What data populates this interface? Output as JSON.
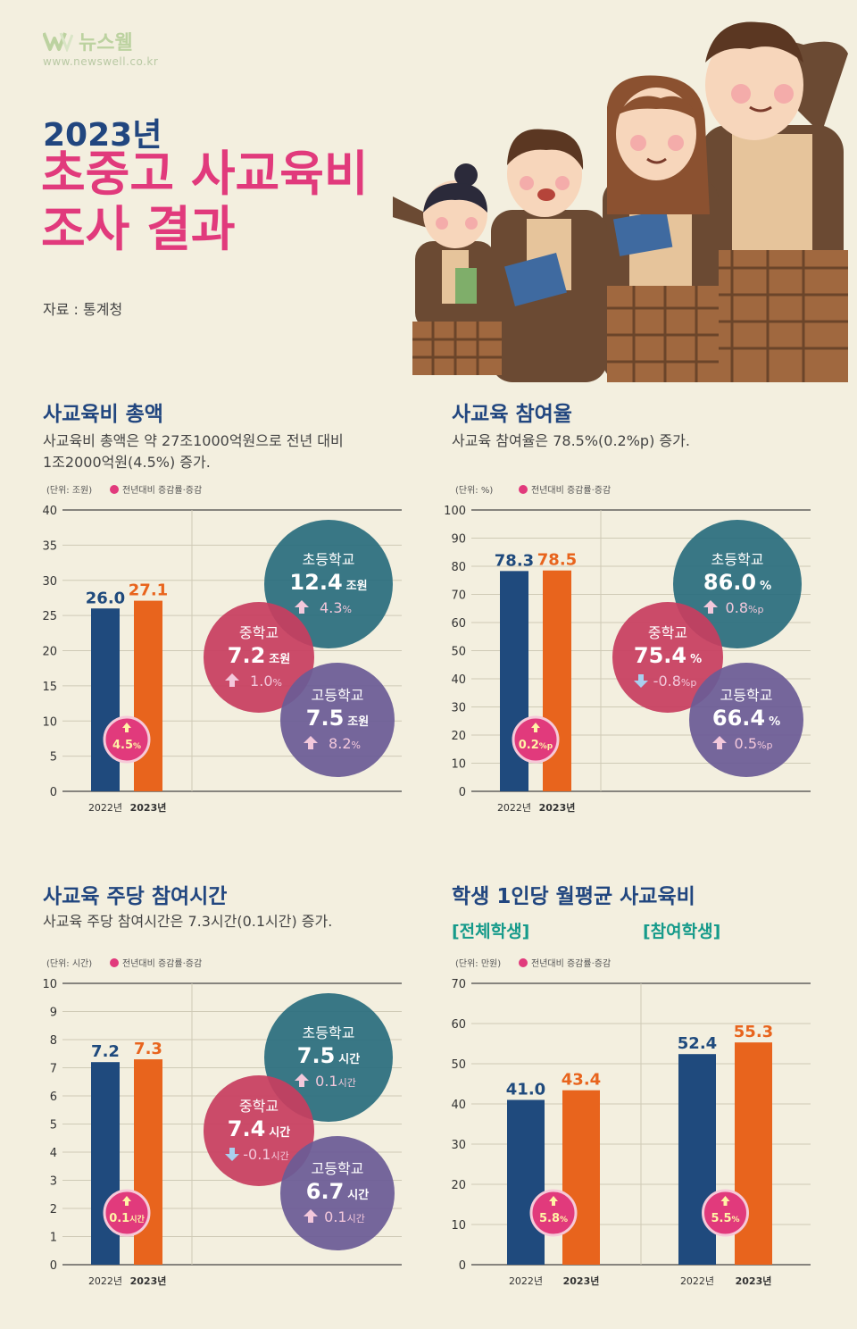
{
  "brand": {
    "name": "뉴스웰",
    "url": "www.newswell.co.kr"
  },
  "header": {
    "year": "2023년",
    "title_line1": "초중고 사교육비",
    "title_line2": "조사 결과",
    "source": "자료 : 통계청"
  },
  "legend_label": "전년대비 증감률·증감",
  "colors": {
    "navy": "#1f4a7d",
    "orange": "#e8641d",
    "pink": "#e13a7c",
    "teal": "#2a6e7e",
    "crimson": "#c73e60",
    "purple": "#6a5b96"
  },
  "chart_data": [
    {
      "type": "bar",
      "title": "사교육비 총액",
      "desc_line1": "사교육비 총액은 약 27조1000억원으로 전년 대비",
      "desc_line2": "1조2000억원(4.5%) 증가.",
      "unit": "(단위: 조원)",
      "categories": [
        "2022년",
        "2023년"
      ],
      "values": [
        26.0,
        27.1
      ],
      "labels": [
        "26.0",
        "27.1"
      ],
      "yticks": [
        "0",
        "5",
        "10",
        "15",
        "20",
        "25",
        "30",
        "35",
        "40"
      ],
      "ylim": [
        0,
        40
      ],
      "change": {
        "value": "4.5",
        "unit": "%"
      },
      "bubbles": [
        {
          "name": "초등학교",
          "value": "12.4",
          "unit": "조원",
          "change": "4.3",
          "change_unit": "%",
          "dir": "up"
        },
        {
          "name": "중학교",
          "value": "7.2",
          "unit": "조원",
          "change": "1.0",
          "change_unit": "%",
          "dir": "up"
        },
        {
          "name": "고등학교",
          "value": "7.5",
          "unit": "조원",
          "change": "8.2",
          "change_unit": "%",
          "dir": "up"
        }
      ]
    },
    {
      "type": "bar",
      "title": "사교육 참여율",
      "desc_line1": "사교육 참여율은 78.5%(0.2%p) 증가.",
      "desc_line2": "",
      "unit": "(단위: %)",
      "categories": [
        "2022년",
        "2023년"
      ],
      "values": [
        78.3,
        78.5
      ],
      "labels": [
        "78.3",
        "78.5"
      ],
      "yticks": [
        "0",
        "10",
        "20",
        "30",
        "40",
        "50",
        "60",
        "70",
        "80",
        "90",
        "100"
      ],
      "ylim": [
        0,
        100
      ],
      "change": {
        "value": "0.2",
        "unit": "%p"
      },
      "bubbles": [
        {
          "name": "초등학교",
          "value": "86.0",
          "unit": "%",
          "change": "0.8",
          "change_unit": "%p",
          "dir": "up"
        },
        {
          "name": "중학교",
          "value": "75.4",
          "unit": "%",
          "change": "-0.8",
          "change_unit": "%p",
          "dir": "down"
        },
        {
          "name": "고등학교",
          "value": "66.4",
          "unit": "%",
          "change": "0.5",
          "change_unit": "%p",
          "dir": "up"
        }
      ]
    },
    {
      "type": "bar",
      "title": "사교육 주당 참여시간",
      "desc_line1": "사교육 주당 참여시간은 7.3시간(0.1시간) 증가.",
      "desc_line2": "",
      "unit": "(단위: 시간)",
      "categories": [
        "2022년",
        "2023년"
      ],
      "values": [
        7.2,
        7.3
      ],
      "labels": [
        "7.2",
        "7.3"
      ],
      "yticks": [
        "0",
        "1",
        "2",
        "3",
        "4",
        "5",
        "6",
        "7",
        "8",
        "9",
        "10"
      ],
      "ylim": [
        0,
        10
      ],
      "change": {
        "value": "0.1",
        "unit": "시간"
      },
      "bubbles": [
        {
          "name": "초등학교",
          "value": "7.5",
          "unit": "시간",
          "change": "0.1",
          "change_unit": "시간",
          "dir": "up"
        },
        {
          "name": "중학교",
          "value": "7.4",
          "unit": "시간",
          "change": "-0.1",
          "change_unit": "시간",
          "dir": "down"
        },
        {
          "name": "고등학교",
          "value": "6.7",
          "unit": "시간",
          "change": "0.1",
          "change_unit": "시간",
          "dir": "up"
        }
      ]
    },
    {
      "type": "bar",
      "title": "학생 1인당 월평균 사교육비",
      "sub_left": "[전체학생]",
      "sub_right": "[참여학생]",
      "unit": "(단위: 만원)",
      "yticks": [
        "0",
        "10",
        "20",
        "30",
        "40",
        "50",
        "60",
        "70"
      ],
      "ylim": [
        0,
        70
      ],
      "groups": [
        {
          "name": "전체학생",
          "categories": [
            "2022년",
            "2023년"
          ],
          "values": [
            41.0,
            43.4
          ],
          "labels": [
            "41.0",
            "43.4"
          ],
          "change": {
            "value": "5.8",
            "unit": "%"
          }
        },
        {
          "name": "참여학생",
          "categories": [
            "2022년",
            "2023년"
          ],
          "values": [
            52.4,
            55.3
          ],
          "labels": [
            "52.4",
            "55.3"
          ],
          "change": {
            "value": "5.5",
            "unit": "%"
          }
        }
      ]
    }
  ]
}
